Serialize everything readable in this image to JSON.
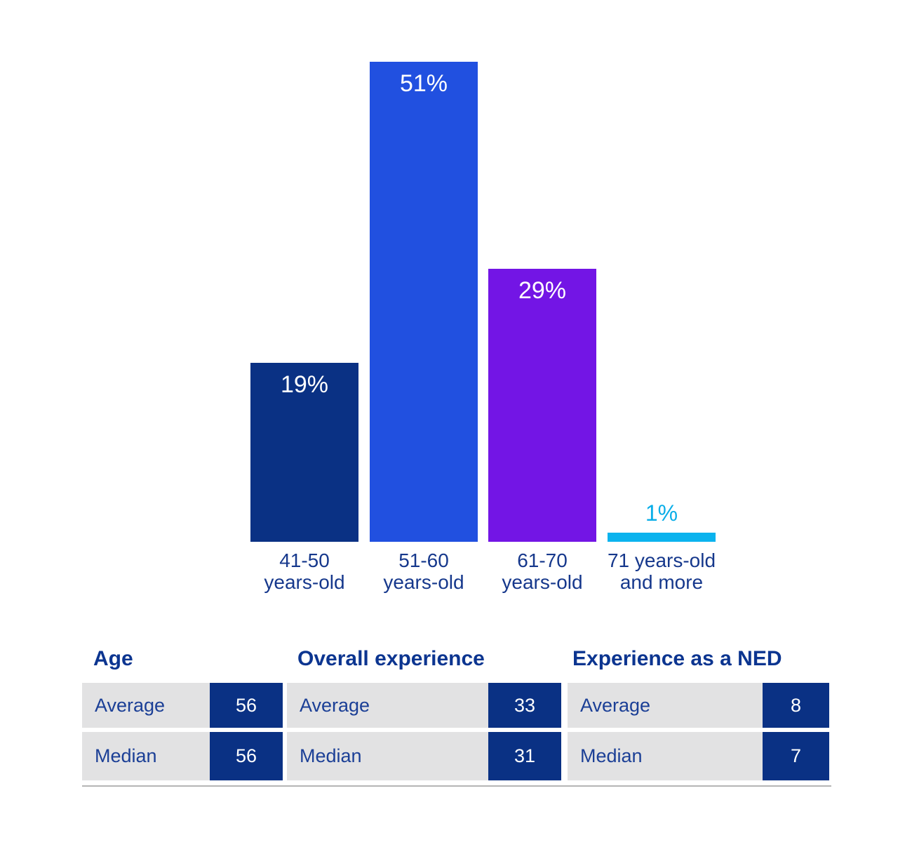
{
  "chart_data": {
    "type": "bar",
    "title": "",
    "unit": "%",
    "categories": [
      "41-50 years-old",
      "51-60 years-old",
      "61-70 years-old",
      "71 years-old and more"
    ],
    "values": [
      19,
      51,
      29,
      1
    ],
    "ylim": [
      0,
      55
    ],
    "grid": false,
    "legend": "none",
    "bars": [
      {
        "value": 19,
        "label": "19%",
        "category_line1": "41-50",
        "category_line2": "years-old",
        "color": "#0a3184",
        "label_position": "inside",
        "label_color": "#ffffff"
      },
      {
        "value": 51,
        "label": "51%",
        "category_line1": "51-60",
        "category_line2": "years-old",
        "color": "#2150e0",
        "label_position": "inside",
        "label_color": "#ffffff"
      },
      {
        "value": 29,
        "label": "29%",
        "category_line1": "61-70",
        "category_line2": "years-old",
        "color": "#7315e5",
        "label_position": "inside",
        "label_color": "#ffffff"
      },
      {
        "value": 1,
        "label": "1%",
        "category_line1": "71 years-old",
        "category_line2": "and more",
        "color": "#0bb3ee",
        "label_position": "above",
        "label_color": "#0aaee8"
      }
    ]
  },
  "stats_table": {
    "sections": [
      {
        "title": "Age",
        "rows": [
          {
            "label": "Average",
            "value": "56"
          },
          {
            "label": "Median",
            "value": "56"
          }
        ]
      },
      {
        "title": "Overall experience",
        "rows": [
          {
            "label": "Average",
            "value": "33"
          },
          {
            "label": "Median",
            "value": "31"
          }
        ]
      },
      {
        "title": "Experience as a NED",
        "rows": [
          {
            "label": "Average",
            "value": "8"
          },
          {
            "label": "Median",
            "value": "7"
          }
        ]
      }
    ]
  },
  "colors": {
    "navy": "#0a3184",
    "blue": "#2150e0",
    "purple": "#7315e5",
    "cyan": "#0bb3ee",
    "label_navy": "#16388c",
    "header_navy": "#0c3590",
    "row_bg": "#e2e2e3",
    "value_text": "#ffffff"
  }
}
